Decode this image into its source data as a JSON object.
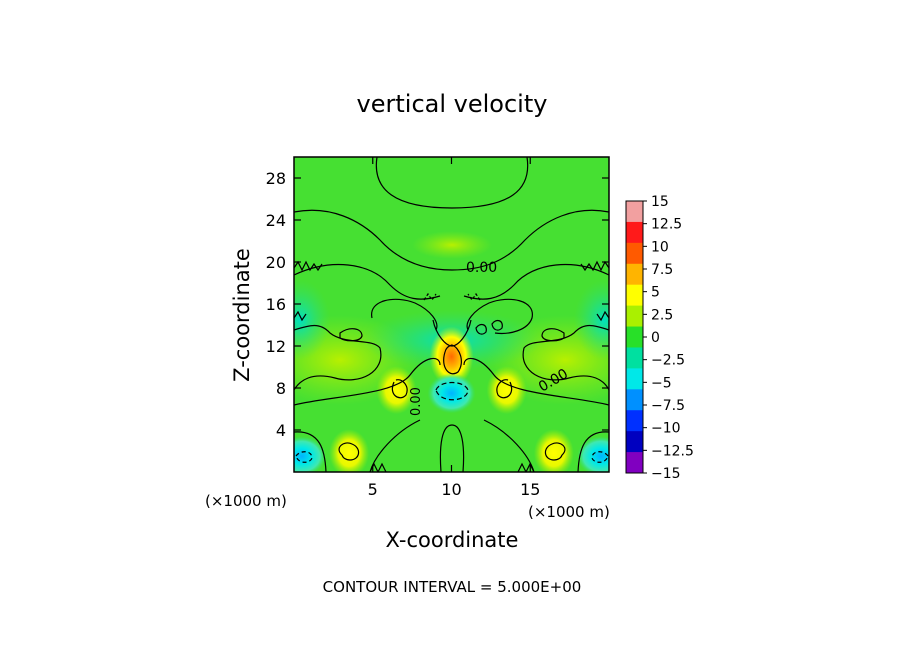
{
  "chart_data": {
    "type": "heatmap",
    "title": "vertical velocity",
    "xlabel": "X-coordinate",
    "ylabel": "Z-coordinate",
    "x_unit_left": "(×1000 m)",
    "x_unit_right": "(×1000 m)",
    "xlim": [
      0,
      20
    ],
    "ylim": [
      0,
      30
    ],
    "x_ticks": [
      5,
      10,
      15
    ],
    "y_ticks": [
      4,
      8,
      12,
      16,
      20,
      24,
      28
    ],
    "contour_labels": [
      "0.00",
      "0.00",
      "0.00"
    ],
    "footer": "CONTOUR INTERVAL = 5.000E+00",
    "colorbar": {
      "labels": [
        "15",
        "12.5",
        "10",
        "7.5",
        "5",
        "2.5",
        "0",
        "−2.5",
        "−5",
        "−7.5",
        "−10",
        "−12.5",
        "−15"
      ],
      "colors": [
        "#f2a0a0",
        "#ff1a1a",
        "#ff5a00",
        "#ffb400",
        "#ffff00",
        "#aaf000",
        "#28e028",
        "#00e0a0",
        "#00e8e8",
        "#0090ff",
        "#0030ff",
        "#0000c0",
        "#8000c0"
      ]
    },
    "features": [
      {
        "name": "updraft",
        "x": 10,
        "z": 11,
        "value": 7.5
      },
      {
        "name": "downdraft",
        "x": 10,
        "z": 7.5,
        "value": -5
      },
      {
        "name": "updraft",
        "x": 6.5,
        "z": 7.8,
        "value": 5
      },
      {
        "name": "updraft",
        "x": 13.5,
        "z": 7.8,
        "value": 5
      },
      {
        "name": "updraft",
        "x": 3.5,
        "z": 1.8,
        "value": 5
      },
      {
        "name": "updraft",
        "x": 16.5,
        "z": 1.8,
        "value": 5
      },
      {
        "name": "downdraft",
        "x": 0.5,
        "z": 1.5,
        "value": -5
      },
      {
        "name": "downdraft",
        "x": 19.5,
        "z": 1.5,
        "value": -5
      }
    ]
  }
}
